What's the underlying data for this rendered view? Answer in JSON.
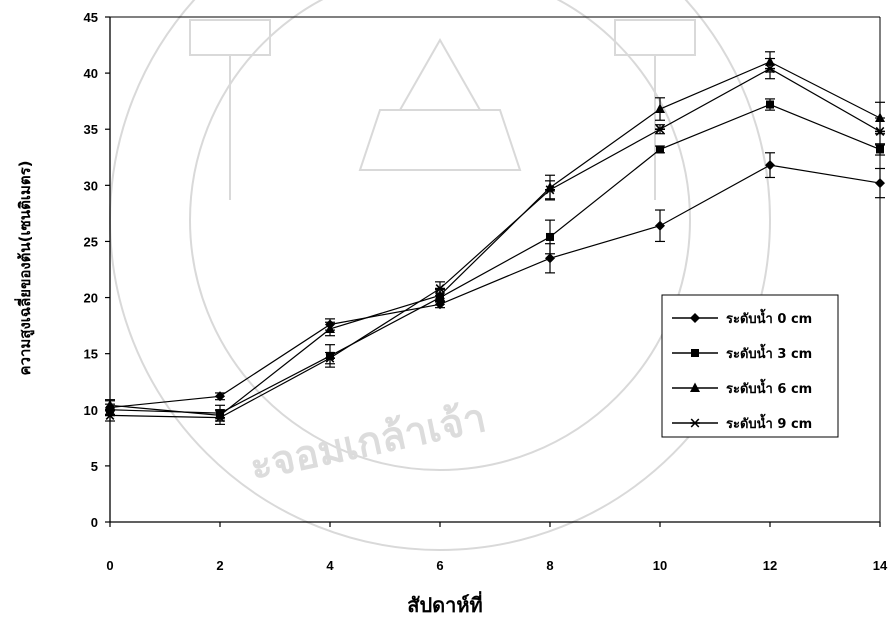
{
  "chart_data": {
    "type": "line",
    "xlabel": "สัปดาห์ที่",
    "ylabel": "ความสูงเฉลี่ยของต้น(เซนติเมตร)",
    "x": [
      0,
      2,
      4,
      6,
      8,
      10,
      12,
      14
    ],
    "xlim": [
      0,
      14
    ],
    "ylim": [
      0,
      45
    ],
    "xticks": [
      0,
      2,
      4,
      6,
      8,
      10,
      12,
      14
    ],
    "yticks": [
      0,
      5,
      10,
      15,
      20,
      25,
      30,
      35,
      40,
      45
    ],
    "grid": false,
    "error_bars": true,
    "legend_position": "right",
    "series": [
      {
        "name": "ระดับน้ำ 0 cm",
        "marker": "diamond",
        "values": [
          10.2,
          11.2,
          17.6,
          19.4,
          23.5,
          26.4,
          31.8,
          30.2
        ],
        "errors": [
          0.6,
          0.3,
          0.5,
          0.3,
          1.3,
          1.4,
          1.1,
          1.3
        ]
      },
      {
        "name": "ระดับน้ำ 3 cm",
        "marker": "square",
        "values": [
          10.0,
          9.7,
          14.8,
          20.0,
          25.4,
          33.2,
          37.2,
          33.2
        ],
        "errors": [
          0.5,
          0.7,
          1.0,
          0.4,
          1.5,
          0.3,
          0.5,
          0.5
        ]
      },
      {
        "name": "ระดับน้ำ 6 cm",
        "marker": "triangle",
        "values": [
          10.4,
          9.5,
          17.2,
          20.2,
          29.8,
          36.8,
          41.0,
          36.0
        ],
        "errors": [
          0.5,
          0.5,
          0.6,
          0.5,
          1.1,
          1.0,
          0.9,
          1.4
        ]
      },
      {
        "name": "ระดับน้ำ 9 cm",
        "marker": "asterisk",
        "values": [
          9.5,
          9.3,
          14.6,
          20.8,
          29.6,
          35.0,
          40.4,
          34.8
        ],
        "errors": [
          0.5,
          0.6,
          0.5,
          0.6,
          0.8,
          0.4,
          0.9,
          1.2
        ]
      }
    ]
  },
  "watermark": {
    "text": "ะจอมเกล้าเจ้า",
    "color": "#d9d9d9"
  }
}
